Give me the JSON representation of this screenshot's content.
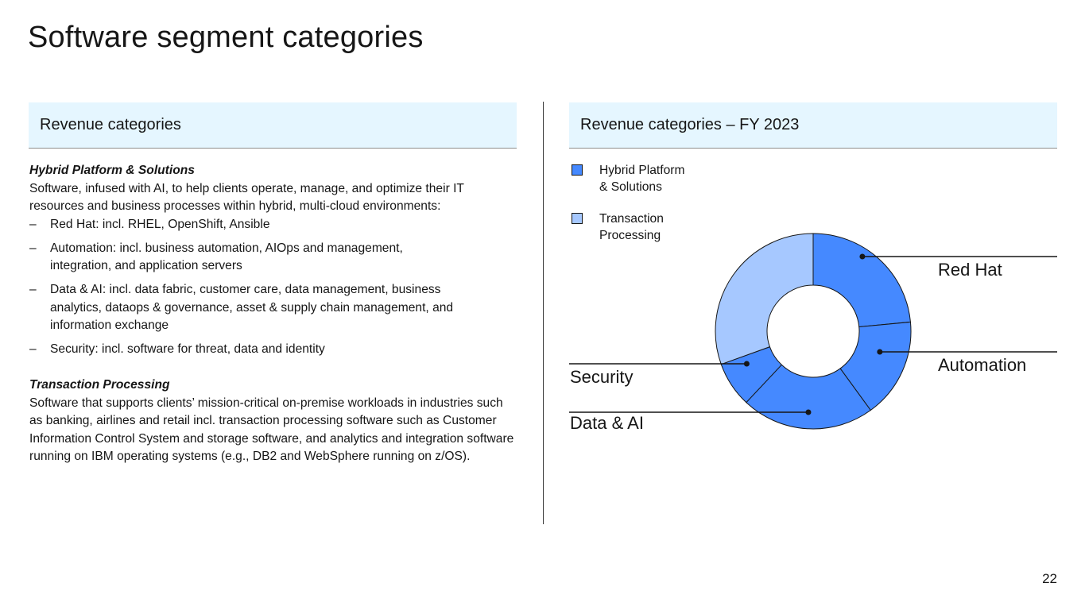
{
  "slide": {
    "title": "Software segment categories",
    "page_number": "22"
  },
  "left_panel": {
    "header": "Revenue categories",
    "hybrid": {
      "title": "Hybrid Platform & Solutions",
      "description": "Software, infused with AI, to help clients operate, manage, and optimize their IT resources and business processes within hybrid, multi-cloud environments:",
      "bullets": [
        {
          "dash": "–",
          "text": "Red Hat: incl. RHEL, OpenShift, Ansible"
        },
        {
          "dash": "–",
          "text": "Automation: incl. business automation, AIOps and management, integration, and application servers"
        },
        {
          "dash": "–",
          "text": "Data & AI: incl. data fabric, customer care, data management, business analytics, dataops & governance, asset & supply chain management, and information exchange"
        },
        {
          "dash": "–",
          "text": "Security: incl. software for threat, data and identity"
        }
      ]
    },
    "transaction": {
      "title": "Transaction Processing",
      "description": "Software that supports clients’ mission-critical on-premise workloads in industries such as banking, airlines and retail incl. transaction processing software such as Customer Information Control System and storage software, and analytics and integration software running on IBM operating systems (e.g., DB2 and WebSphere running on z/OS)."
    }
  },
  "right_panel": {
    "header": "Revenue categories – FY 2023"
  },
  "chart_data": {
    "type": "pie",
    "variant": "donut",
    "title": "Revenue categories – FY 2023",
    "legend": [
      {
        "label_line1": "Hybrid Platform",
        "label_line2": "& Solutions",
        "color": "#4589ff"
      },
      {
        "label_line1": "Transaction",
        "label_line2": "Processing",
        "color": "#a6c8ff"
      }
    ],
    "legend_position": "top-left",
    "slices": [
      {
        "label": "Red Hat",
        "value": 23.5,
        "category": "Hybrid Platform & Solutions",
        "color": "#4589ff"
      },
      {
        "label": "Automation",
        "value": 16.5,
        "category": "Hybrid Platform & Solutions",
        "color": "#4589ff"
      },
      {
        "label": "Data & AI",
        "value": 22.0,
        "category": "Hybrid Platform & Solutions",
        "color": "#4589ff"
      },
      {
        "label": "Security",
        "value": 7.5,
        "category": "Hybrid Platform & Solutions",
        "color": "#4589ff"
      },
      {
        "label": "",
        "value": 30.5,
        "category": "Transaction Processing",
        "color": "#a6c8ff"
      }
    ],
    "stroke_color": "#161616"
  }
}
